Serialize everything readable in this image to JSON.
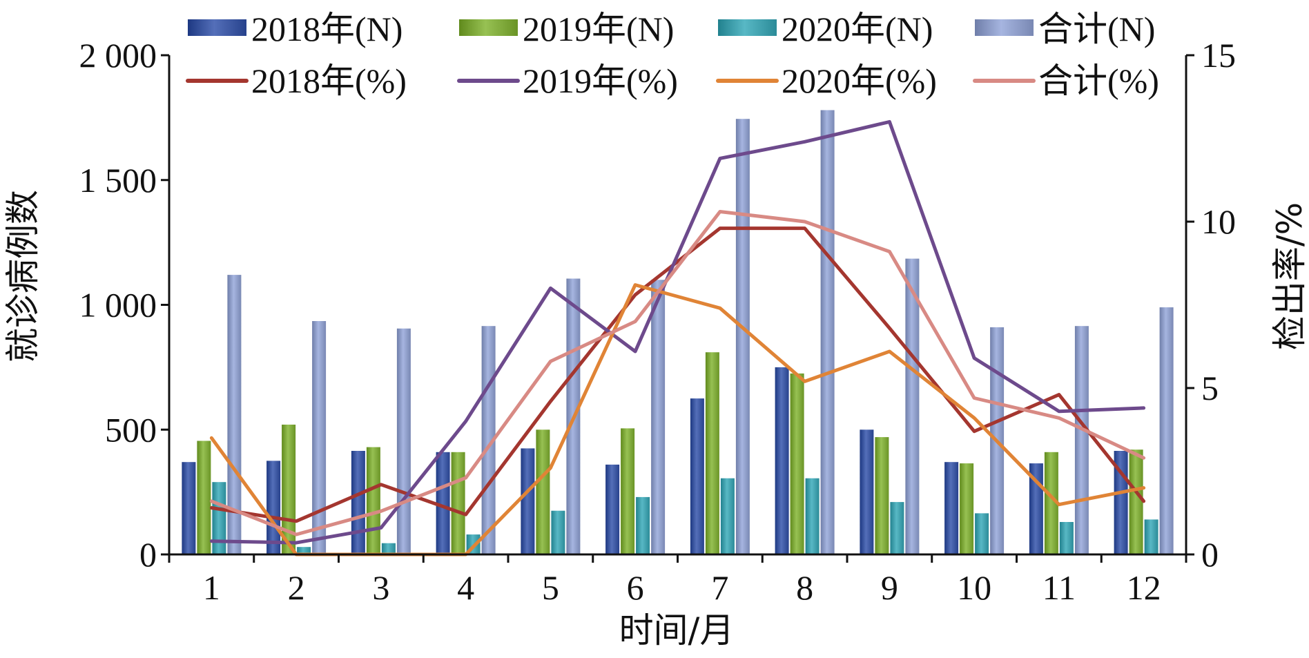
{
  "chart_data": {
    "type": "bar",
    "title": "",
    "xlabel": "时间/月",
    "ylabel_left": "就诊病例数",
    "ylabel_right": "检出率/%",
    "categories": [
      "1",
      "2",
      "3",
      "4",
      "5",
      "6",
      "7",
      "8",
      "9",
      "10",
      "11",
      "12"
    ],
    "ylim_left": [
      0,
      2000
    ],
    "ylim_right": [
      0,
      15
    ],
    "yticks_left": [
      "0",
      "500",
      "1 000",
      "1 500",
      "2 000"
    ],
    "yticks_left_values": [
      0,
      500,
      1000,
      1500,
      2000
    ],
    "yticks_right": [
      "0",
      "5",
      "10",
      "15"
    ],
    "yticks_right_values": [
      0,
      5,
      10,
      15
    ],
    "grid": false,
    "legend_position": "top",
    "bar_series": [
      {
        "name": "2018年(N)",
        "color": "#3b56a0",
        "values": [
          370,
          375,
          415,
          410,
          425,
          360,
          625,
          750,
          500,
          370,
          365,
          415
        ]
      },
      {
        "name": "2019年(N)",
        "color": "#7ea83a",
        "values": [
          455,
          520,
          430,
          410,
          500,
          505,
          810,
          725,
          470,
          365,
          410,
          420
        ]
      },
      {
        "name": "2020年(N)",
        "color": "#3f9fac",
        "values": [
          290,
          30,
          45,
          80,
          175,
          230,
          305,
          305,
          210,
          165,
          130,
          140
        ]
      },
      {
        "name": "合计(N)",
        "color": "#8d9cc7",
        "values": [
          1120,
          935,
          905,
          915,
          1105,
          1100,
          1745,
          1780,
          1185,
          910,
          915,
          990
        ]
      }
    ],
    "line_series": [
      {
        "name": "2018年(%)",
        "color": "#a4362f",
        "values": [
          1.4,
          1.0,
          2.1,
          1.2,
          4.6,
          7.8,
          9.8,
          9.8,
          6.8,
          3.7,
          4.8,
          1.6
        ]
      },
      {
        "name": "2019年(%)",
        "color": "#6d4a8c",
        "values": [
          0.4,
          0.35,
          0.8,
          4.0,
          8.0,
          6.1,
          11.9,
          12.4,
          13.0,
          5.9,
          4.3,
          4.4
        ]
      },
      {
        "name": "2020年(%)",
        "color": "#e08436",
        "values": [
          3.5,
          0.0,
          0.0,
          0.0,
          2.6,
          8.1,
          7.4,
          5.2,
          6.1,
          4.1,
          1.5,
          2.0
        ]
      },
      {
        "name": "合计(%)",
        "color": "#d88a84",
        "values": [
          1.6,
          0.6,
          1.3,
          2.3,
          5.8,
          7.0,
          10.3,
          10.0,
          9.1,
          4.7,
          4.1,
          2.9
        ]
      }
    ]
  }
}
